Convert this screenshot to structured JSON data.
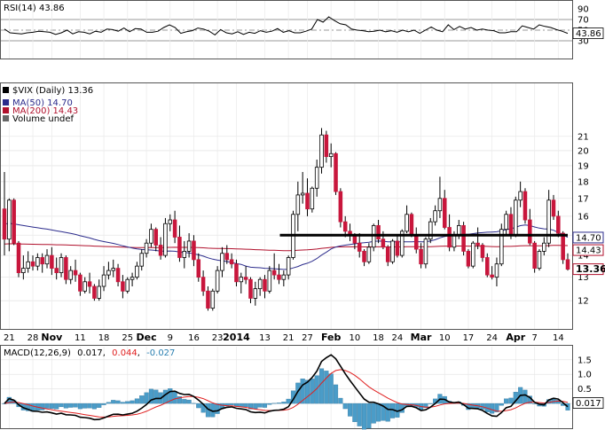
{
  "chart_data": {
    "type": "candlestick",
    "colors": {
      "up": "#ffffff",
      "down": "#c8163c",
      "outline": "#000000",
      "ma50": "#2c2c8c",
      "ma200": "#b0102c",
      "resistance": "#000000",
      "rsi": "#000000",
      "macd": "#000000",
      "signal": "#e02020",
      "hist": "#4a9cc8",
      "panel_border": "#555555"
    },
    "rsi": {
      "label": "RSI(14) 43.86",
      "current": "43.86",
      "ylim": [
        0,
        100
      ],
      "ticks": [
        "90",
        "70",
        "50",
        "30"
      ],
      "levels": [
        70,
        50,
        30
      ],
      "values": [
        52,
        45,
        44,
        43,
        45,
        46,
        48,
        47,
        46,
        42,
        45,
        50,
        43,
        47,
        46,
        43,
        48,
        46,
        52,
        51,
        48,
        54,
        47,
        53,
        52,
        46,
        46,
        48,
        55,
        60,
        55,
        44,
        47,
        49,
        54,
        52,
        48,
        41,
        51,
        45,
        43,
        47,
        42,
        46,
        44,
        49,
        46,
        48,
        53,
        46,
        49,
        45,
        45,
        48,
        52,
        70,
        65,
        75,
        68,
        62,
        60,
        52,
        50,
        49,
        47,
        48,
        50,
        47,
        49,
        46,
        50,
        47,
        50,
        44,
        50,
        56,
        50,
        47,
        60,
        51,
        57,
        52,
        55,
        50,
        52,
        50,
        49,
        45,
        45,
        47,
        47,
        58,
        55,
        52,
        60,
        57,
        55,
        51,
        48,
        44
      ]
    },
    "price": {
      "label": "$VIX (Daily) 13.36",
      "ma50_label": "MA(50) 14.70",
      "ma200_label": "MA(200) 14.43",
      "volume_label": "Volume undef",
      "ylim_log": [
        11,
        25
      ],
      "ticks": [
        "21",
        "20",
        "19",
        "18",
        "17",
        "16",
        "15",
        "14",
        "13",
        "12"
      ],
      "tick_values": [
        21,
        20,
        19,
        18,
        17,
        16,
        15,
        14,
        13,
        12
      ],
      "markers": [
        {
          "label": "14.70",
          "value": 14.7,
          "color": "#2c2c8c"
        },
        {
          "label": "14.43",
          "value": 14.43,
          "color": "#b0102c"
        },
        {
          "label": "13.36",
          "value": 13.36,
          "color": "#b0102c"
        }
      ],
      "resistance": {
        "value": 15.0,
        "start_index": 58
      },
      "x_ticks": [
        {
          "label": "21",
          "i": 1
        },
        {
          "label": "28",
          "i": 6
        },
        {
          "label": "Nov",
          "i": 10
        },
        {
          "label": "11",
          "i": 16
        },
        {
          "label": "18",
          "i": 21
        },
        {
          "label": "25",
          "i": 26
        },
        {
          "label": "Dec",
          "i": 30
        },
        {
          "label": "9",
          "i": 35
        },
        {
          "label": "16",
          "i": 40
        },
        {
          "label": "23",
          "i": 45
        },
        {
          "label": "2014",
          "i": 49
        },
        {
          "label": "13",
          "i": 55
        },
        {
          "label": "21",
          "i": 60
        },
        {
          "label": "27",
          "i": 64
        },
        {
          "label": "Feb",
          "i": 69
        },
        {
          "label": "10",
          "i": 74
        },
        {
          "label": "18",
          "i": 79
        },
        {
          "label": "24",
          "i": 83
        },
        {
          "label": "Mar",
          "i": 88
        },
        {
          "label": "10",
          "i": 93
        },
        {
          "label": "17",
          "i": 98
        },
        {
          "label": "24",
          "i": 103
        },
        {
          "label": "Apr",
          "i": 108
        },
        {
          "label": "7",
          "i": 112
        },
        {
          "label": "14",
          "i": 117
        }
      ],
      "ohlc": [
        [
          16.4,
          18.6,
          14.0,
          14.8
        ],
        [
          14.8,
          17.0,
          14.2,
          16.9
        ],
        [
          16.9,
          17.0,
          14.5,
          14.6
        ],
        [
          14.6,
          14.7,
          13.0,
          13.2
        ],
        [
          13.2,
          14.0,
          12.9,
          13.4
        ],
        [
          13.4,
          14.2,
          13.2,
          13.7
        ],
        [
          13.7,
          14.0,
          13.3,
          13.5
        ],
        [
          13.5,
          14.1,
          13.3,
          13.9
        ],
        [
          13.9,
          14.1,
          13.2,
          13.6
        ],
        [
          13.6,
          14.3,
          13.4,
          14.0
        ],
        [
          14.0,
          14.4,
          13.1,
          13.4
        ],
        [
          13.4,
          13.9,
          12.9,
          13.2
        ],
        [
          13.2,
          14.1,
          13.0,
          13.9
        ],
        [
          13.9,
          14.0,
          12.7,
          12.9
        ],
        [
          12.9,
          13.5,
          12.7,
          13.3
        ],
        [
          13.3,
          13.8,
          12.8,
          13.1
        ],
        [
          13.1,
          13.2,
          12.2,
          12.4
        ],
        [
          12.4,
          13.0,
          12.3,
          12.8
        ],
        [
          12.8,
          13.2,
          12.3,
          12.6
        ],
        [
          12.6,
          12.7,
          12.0,
          12.1
        ],
        [
          12.1,
          12.9,
          12.0,
          12.6
        ],
        [
          12.6,
          13.5,
          12.4,
          13.1
        ],
        [
          13.1,
          13.7,
          12.9,
          13.3
        ],
        [
          13.3,
          13.8,
          13.0,
          13.4
        ],
        [
          13.4,
          13.6,
          12.6,
          12.8
        ],
        [
          12.8,
          13.1,
          12.1,
          12.4
        ],
        [
          12.4,
          13.0,
          12.3,
          12.9
        ],
        [
          12.9,
          13.2,
          12.6,
          13.0
        ],
        [
          13.0,
          13.7,
          12.9,
          13.5
        ],
        [
          13.5,
          14.3,
          13.3,
          14.1
        ],
        [
          14.1,
          14.8,
          13.9,
          14.6
        ],
        [
          14.6,
          15.6,
          14.4,
          15.3
        ],
        [
          15.3,
          15.4,
          14.2,
          14.5
        ],
        [
          14.5,
          14.9,
          13.8,
          14.0
        ],
        [
          14.0,
          15.9,
          13.9,
          15.6
        ],
        [
          15.6,
          16.1,
          15.2,
          15.8
        ],
        [
          15.8,
          16.3,
          14.6,
          14.9
        ],
        [
          14.9,
          15.5,
          13.7,
          13.9
        ],
        [
          13.9,
          14.7,
          13.4,
          14.2
        ],
        [
          14.2,
          15.1,
          13.9,
          14.7
        ],
        [
          14.7,
          15.0,
          13.5,
          13.8
        ],
        [
          13.8,
          14.1,
          12.8,
          13.0
        ],
        [
          13.0,
          13.3,
          12.2,
          12.4
        ],
        [
          12.4,
          12.6,
          11.6,
          11.7
        ],
        [
          11.7,
          12.5,
          11.6,
          12.4
        ],
        [
          12.4,
          13.5,
          12.3,
          13.3
        ],
        [
          13.3,
          14.4,
          13.0,
          14.1
        ],
        [
          14.1,
          14.5,
          13.6,
          13.8
        ],
        [
          13.8,
          14.1,
          13.4,
          13.6
        ],
        [
          13.6,
          13.8,
          12.6,
          12.8
        ],
        [
          12.8,
          13.2,
          12.3,
          13.0
        ],
        [
          13.0,
          13.5,
          12.7,
          12.9
        ],
        [
          12.9,
          13.0,
          11.9,
          12.1
        ],
        [
          12.1,
          12.8,
          11.8,
          12.5
        ],
        [
          12.5,
          13.0,
          12.2,
          12.9
        ],
        [
          12.9,
          13.1,
          12.1,
          12.4
        ],
        [
          12.4,
          13.5,
          12.3,
          13.3
        ],
        [
          13.3,
          14.1,
          12.9,
          13.1
        ],
        [
          13.1,
          13.6,
          12.7,
          12.9
        ],
        [
          12.9,
          13.3,
          12.6,
          13.1
        ],
        [
          13.1,
          14.0,
          12.9,
          13.9
        ],
        [
          13.9,
          16.3,
          13.8,
          16.1
        ],
        [
          16.1,
          18.0,
          15.2,
          17.2
        ],
        [
          17.2,
          18.6,
          16.7,
          17.3
        ],
        [
          17.3,
          18.2,
          16.0,
          16.4
        ],
        [
          16.4,
          17.7,
          16.2,
          17.6
        ],
        [
          17.6,
          19.4,
          17.1,
          18.9
        ],
        [
          18.9,
          21.6,
          18.5,
          21.1
        ],
        [
          21.1,
          21.4,
          19.2,
          19.6
        ],
        [
          19.6,
          20.5,
          18.9,
          19.8
        ],
        [
          19.8,
          19.9,
          17.2,
          17.4
        ],
        [
          17.4,
          17.6,
          15.4,
          15.7
        ],
        [
          15.7,
          16.0,
          14.9,
          15.2
        ],
        [
          15.2,
          15.6,
          14.7,
          15.0
        ],
        [
          15.0,
          15.1,
          14.3,
          14.6
        ],
        [
          14.6,
          15.1,
          13.9,
          14.2
        ],
        [
          14.2,
          14.3,
          13.5,
          13.7
        ],
        [
          13.7,
          14.6,
          13.6,
          14.4
        ],
        [
          14.4,
          15.6,
          14.2,
          15.5
        ],
        [
          15.5,
          15.8,
          14.6,
          14.8
        ],
        [
          14.8,
          15.2,
          14.3,
          14.4
        ],
        [
          14.4,
          14.5,
          13.5,
          13.7
        ],
        [
          13.7,
          14.8,
          13.6,
          14.7
        ],
        [
          14.7,
          15.0,
          13.9,
          14.0
        ],
        [
          14.0,
          15.3,
          13.9,
          15.2
        ],
        [
          15.2,
          16.6,
          15.1,
          16.1
        ],
        [
          16.1,
          16.2,
          14.9,
          15.0
        ],
        [
          15.0,
          15.4,
          14.1,
          14.3
        ],
        [
          14.3,
          14.6,
          13.4,
          13.6
        ],
        [
          13.6,
          14.9,
          13.4,
          14.8
        ],
        [
          14.8,
          15.9,
          14.6,
          15.7
        ],
        [
          15.7,
          16.6,
          15.5,
          16.3
        ],
        [
          16.3,
          18.3,
          15.9,
          17.0
        ],
        [
          17.0,
          17.5,
          15.3,
          15.4
        ],
        [
          15.4,
          16.1,
          14.2,
          14.4
        ],
        [
          14.4,
          15.2,
          14.2,
          15.0
        ],
        [
          15.0,
          15.8,
          14.8,
          15.5
        ],
        [
          15.5,
          15.7,
          14.0,
          14.2
        ],
        [
          14.2,
          14.3,
          13.4,
          13.5
        ],
        [
          13.5,
          14.7,
          13.4,
          14.6
        ],
        [
          14.6,
          15.4,
          14.3,
          14.5
        ],
        [
          14.5,
          14.6,
          13.7,
          13.9
        ],
        [
          13.9,
          14.1,
          13.0,
          13.1
        ],
        [
          13.1,
          13.5,
          12.9,
          13.0
        ],
        [
          13.0,
          13.9,
          12.6,
          13.6
        ],
        [
          13.6,
          15.6,
          13.5,
          15.3
        ],
        [
          15.3,
          16.3,
          15.0,
          16.1
        ],
        [
          16.1,
          16.5,
          14.8,
          15.0
        ],
        [
          15.0,
          17.1,
          14.9,
          16.9
        ],
        [
          16.9,
          18.0,
          16.5,
          17.4
        ],
        [
          17.4,
          17.6,
          15.6,
          15.8
        ],
        [
          15.8,
          16.4,
          14.5,
          14.6
        ],
        [
          14.6,
          14.7,
          13.2,
          13.4
        ],
        [
          13.4,
          14.3,
          13.3,
          14.2
        ],
        [
          14.2,
          14.9,
          14.0,
          14.6
        ],
        [
          14.6,
          17.5,
          14.4,
          16.9
        ],
        [
          16.9,
          17.2,
          15.8,
          16.0
        ],
        [
          16.0,
          16.3,
          14.9,
          15.1
        ],
        [
          15.1,
          15.2,
          13.6,
          13.8
        ],
        [
          13.8,
          14.1,
          13.3,
          13.36
        ]
      ]
    },
    "macd": {
      "label": "MACD(12,26,9)",
      "macd_value": "0.017",
      "signal_value": "0.044",
      "hist_value": "-0.027",
      "current": "0.017",
      "ylim": [
        -0.85,
        1.95
      ],
      "ticks": [
        "1.5",
        "1.0",
        "0.5",
        "0.0"
      ],
      "tick_values": [
        1.5,
        1.0,
        0.5,
        0.0
      ]
    }
  }
}
